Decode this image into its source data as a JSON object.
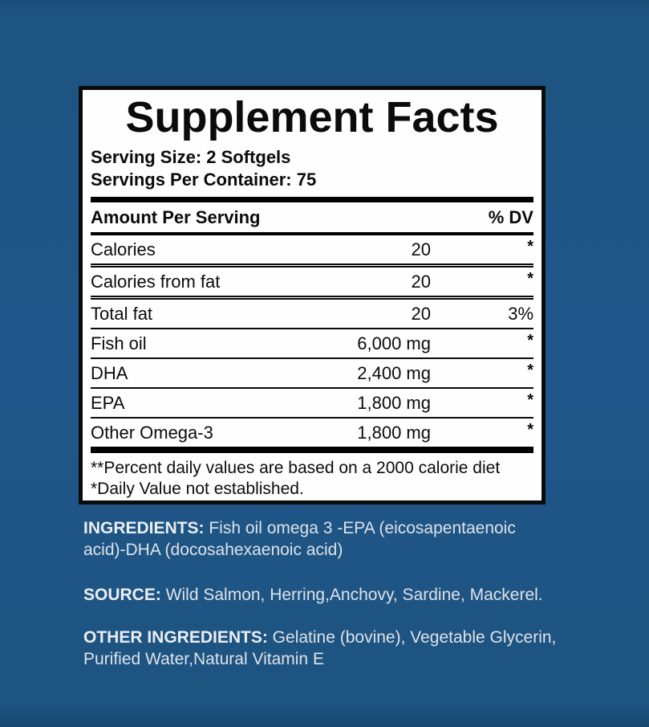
{
  "background": {
    "color": "#1e5480"
  },
  "label": {
    "title": "Supplement Facts",
    "serving_size": "Serving Size: 2 Softgels",
    "servings_per_container": "Servings Per Container: 75",
    "header": {
      "amount_per_serving": "Amount Per Serving",
      "dv": "% DV"
    },
    "rows": [
      {
        "name": "Calories",
        "amount": "20",
        "dv": "*"
      },
      {
        "name": "Calories from fat",
        "amount": "20",
        "dv": "*"
      },
      {
        "name": "Total fat",
        "amount": "20",
        "dv": "3%"
      },
      {
        "name": "Fish oil",
        "amount": "6,000 mg",
        "dv": "*"
      },
      {
        "name": "DHA",
        "amount": "2,400 mg",
        "dv": "*"
      },
      {
        "name": "EPA",
        "amount": "1,800 mg",
        "dv": "*"
      },
      {
        "name": "Other Omega-3",
        "amount": "1,800 mg",
        "dv": "*"
      }
    ],
    "footnotes": [
      "**Percent daily values are based on a 2000 calorie diet",
      "*Daily Value not established."
    ]
  },
  "info": {
    "ingredients": {
      "label": "INGREDIENTS:",
      "line1_rest": " Fish oil omega 3 -EPA (eicosapentaenoic",
      "line2": "acid)-DHA (docosahexaenoic acid)"
    },
    "source": {
      "label": "SOURCE:",
      "text": " Wild Salmon, Herring,Anchovy, Sardine, Mackerel."
    },
    "other_ingredients": {
      "label": "OTHER INGREDIENTS:",
      "line1_rest": " Gelatine (bovine), Vegetable Glycerin,",
      "line2": "Purified Water,Natural Vitamin E"
    }
  }
}
